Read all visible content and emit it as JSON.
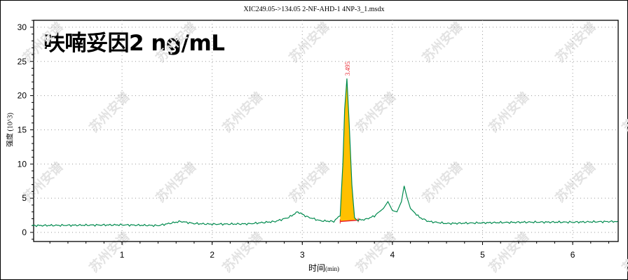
{
  "chart_data": {
    "type": "line",
    "title": "XIC249.05->134.05 2-NF-AHD-1 4NP-3_1.msdx",
    "annotation_title": "呋喃妥因2 ng/mL",
    "xlabel": "时间",
    "xlabel_unit": "(min)",
    "ylabel": "强度 (10^3)",
    "xlim": [
      0,
      6.5
    ],
    "ylim": [
      -1.2,
      31
    ],
    "x_ticks": [
      "1",
      "2",
      "3",
      "4",
      "5",
      "6"
    ],
    "y_ticks": [
      "0",
      "5",
      "10",
      "15",
      "20",
      "25",
      "30"
    ],
    "grid": "dotted",
    "legend": "none",
    "peaks": [
      {
        "retention_time": "3.495",
        "apex_intensity": 22.5,
        "integrated": true,
        "fill_color": "#FFC000",
        "label_color": "#E8202A"
      }
    ],
    "series": [
      {
        "name": "XIC 249.05->134.05",
        "color": "#008A4E",
        "x": [
          0.0,
          0.5,
          1.0,
          1.4,
          1.6,
          1.65,
          1.8,
          2.0,
          2.4,
          2.7,
          2.85,
          2.95,
          3.05,
          3.2,
          3.35,
          3.42,
          3.45,
          3.47,
          3.495,
          3.52,
          3.55,
          3.58,
          3.62,
          3.7,
          3.8,
          3.9,
          3.95,
          4.0,
          4.05,
          4.1,
          4.13,
          4.16,
          4.2,
          4.3,
          4.4,
          4.6,
          5.0,
          5.5,
          6.0,
          6.5
        ],
        "y": [
          1.0,
          1.05,
          1.1,
          1.0,
          1.5,
          1.6,
          1.3,
          1.2,
          1.25,
          1.6,
          2.2,
          3.0,
          2.3,
          1.7,
          1.6,
          2.5,
          10.0,
          18.0,
          22.5,
          16.0,
          7.0,
          2.0,
          1.8,
          1.9,
          2.4,
          3.5,
          4.5,
          3.2,
          3.0,
          4.5,
          6.8,
          5.2,
          3.5,
          2.2,
          1.6,
          1.3,
          1.4,
          1.5,
          1.5,
          1.6
        ]
      }
    ]
  },
  "watermark": "苏州安谱"
}
